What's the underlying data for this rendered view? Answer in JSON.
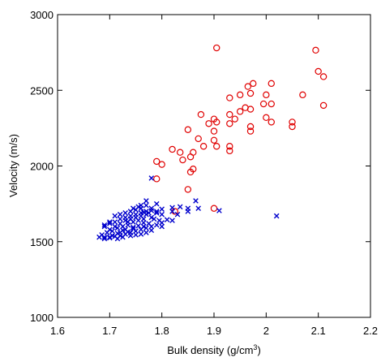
{
  "chart_data": {
    "type": "scatter",
    "xlabel": "Bulk density (g/cm",
    "xlabel_sup": "3",
    "xlabel_close": ")",
    "ylabel": "Velocity (m/s)",
    "xlim": [
      1.6,
      2.2
    ],
    "ylim": [
      1000,
      3000
    ],
    "x_ticks": [
      "1.6",
      "1.7",
      "1.8",
      "1.9",
      "2",
      "2.1",
      "2.2"
    ],
    "y_ticks": [
      "1000",
      "1500",
      "2000",
      "2500",
      "3000"
    ],
    "grid": false,
    "series": [
      {
        "marker": "circle",
        "color": "#e00000",
        "points": [
          [
            1.905,
            2780
          ],
          [
            2.095,
            2765
          ],
          [
            2.1,
            2625
          ],
          [
            2.11,
            2590
          ],
          [
            1.975,
            2545
          ],
          [
            1.965,
            2525
          ],
          [
            2.01,
            2545
          ],
          [
            1.95,
            2470
          ],
          [
            1.97,
            2480
          ],
          [
            2.0,
            2470
          ],
          [
            2.07,
            2470
          ],
          [
            1.93,
            2450
          ],
          [
            1.96,
            2385
          ],
          [
            1.97,
            2375
          ],
          [
            1.995,
            2410
          ],
          [
            2.01,
            2410
          ],
          [
            2.11,
            2400
          ],
          [
            1.95,
            2360
          ],
          [
            1.93,
            2340
          ],
          [
            1.94,
            2310
          ],
          [
            1.875,
            2340
          ],
          [
            1.9,
            2310
          ],
          [
            1.89,
            2280
          ],
          [
            1.905,
            2290
          ],
          [
            2.0,
            2320
          ],
          [
            2.01,
            2290
          ],
          [
            2.05,
            2290
          ],
          [
            2.05,
            2260
          ],
          [
            1.93,
            2280
          ],
          [
            1.97,
            2260
          ],
          [
            1.97,
            2230
          ],
          [
            1.85,
            2240
          ],
          [
            1.9,
            2230
          ],
          [
            1.87,
            2180
          ],
          [
            1.9,
            2170
          ],
          [
            1.93,
            2130
          ],
          [
            1.905,
            2130
          ],
          [
            1.88,
            2130
          ],
          [
            1.86,
            2090
          ],
          [
            1.93,
            2100
          ],
          [
            1.82,
            2110
          ],
          [
            1.835,
            2090
          ],
          [
            1.855,
            2060
          ],
          [
            1.84,
            2040
          ],
          [
            1.79,
            2030
          ],
          [
            1.8,
            2010
          ],
          [
            1.86,
            1980
          ],
          [
            1.855,
            1960
          ],
          [
            1.79,
            1915
          ],
          [
            1.85,
            1845
          ],
          [
            1.825,
            1700
          ],
          [
            1.9,
            1720
          ]
        ]
      },
      {
        "marker": "x",
        "color": "#0000cc",
        "points": [
          [
            1.78,
            1920
          ],
          [
            1.79,
            1750
          ],
          [
            1.77,
            1770
          ],
          [
            1.76,
            1740
          ],
          [
            1.835,
            1730
          ],
          [
            1.85,
            1720
          ],
          [
            1.865,
            1770
          ],
          [
            1.82,
            1725
          ],
          [
            1.8,
            1715
          ],
          [
            1.87,
            1720
          ],
          [
            1.85,
            1700
          ],
          [
            1.91,
            1705
          ],
          [
            1.82,
            1700
          ],
          [
            1.83,
            1680
          ],
          [
            1.8,
            1680
          ],
          [
            1.81,
            1645
          ],
          [
            1.79,
            1690
          ],
          [
            2.02,
            1670
          ],
          [
            1.76,
            1720
          ],
          [
            1.75,
            1710
          ],
          [
            1.74,
            1700
          ],
          [
            1.73,
            1690
          ],
          [
            1.72,
            1680
          ],
          [
            1.71,
            1670
          ],
          [
            1.7,
            1630
          ],
          [
            1.69,
            1610
          ],
          [
            1.7,
            1580
          ],
          [
            1.71,
            1600
          ],
          [
            1.72,
            1620
          ],
          [
            1.73,
            1640
          ],
          [
            1.74,
            1650
          ],
          [
            1.75,
            1660
          ],
          [
            1.76,
            1670
          ],
          [
            1.77,
            1680
          ],
          [
            1.78,
            1660
          ],
          [
            1.765,
            1650
          ],
          [
            1.755,
            1640
          ],
          [
            1.745,
            1630
          ],
          [
            1.735,
            1610
          ],
          [
            1.725,
            1600
          ],
          [
            1.715,
            1590
          ],
          [
            1.705,
            1570
          ],
          [
            1.695,
            1560
          ],
          [
            1.685,
            1545
          ],
          [
            1.68,
            1530
          ],
          [
            1.69,
            1530
          ],
          [
            1.7,
            1530
          ],
          [
            1.71,
            1535
          ],
          [
            1.72,
            1540
          ],
          [
            1.73,
            1550
          ],
          [
            1.74,
            1560
          ],
          [
            1.75,
            1570
          ],
          [
            1.76,
            1580
          ],
          [
            1.77,
            1590
          ],
          [
            1.78,
            1600
          ],
          [
            1.79,
            1610
          ],
          [
            1.775,
            1620
          ],
          [
            1.765,
            1625
          ],
          [
            1.745,
            1595
          ],
          [
            1.725,
            1575
          ],
          [
            1.715,
            1555
          ],
          [
            1.705,
            1540
          ],
          [
            1.7,
            1525
          ],
          [
            1.69,
            1520
          ],
          [
            1.715,
            1520
          ],
          [
            1.725,
            1530
          ],
          [
            1.735,
            1565
          ],
          [
            1.745,
            1585
          ],
          [
            1.755,
            1605
          ],
          [
            1.76,
            1690
          ],
          [
            1.77,
            1700
          ],
          [
            1.78,
            1705
          ],
          [
            1.79,
            1700
          ],
          [
            1.775,
            1690
          ],
          [
            1.765,
            1695
          ],
          [
            1.75,
            1680
          ],
          [
            1.74,
            1670
          ],
          [
            1.73,
            1660
          ],
          [
            1.72,
            1650
          ],
          [
            1.71,
            1630
          ],
          [
            1.7,
            1620
          ],
          [
            1.785,
            1650
          ],
          [
            1.795,
            1640
          ],
          [
            1.8,
            1625
          ],
          [
            1.78,
            1575
          ],
          [
            1.77,
            1560
          ],
          [
            1.76,
            1550
          ],
          [
            1.75,
            1545
          ],
          [
            1.74,
            1540
          ],
          [
            1.8,
            1600
          ],
          [
            1.82,
            1640
          ],
          [
            1.745,
            1720
          ],
          [
            1.755,
            1730
          ],
          [
            1.77,
            1740
          ],
          [
            1.78,
            1720
          ],
          [
            1.69,
            1600
          ],
          [
            1.72,
            1560
          ],
          [
            1.73,
            1580
          ],
          [
            1.765,
            1600
          ],
          [
            1.735,
            1630
          ]
        ]
      }
    ]
  }
}
